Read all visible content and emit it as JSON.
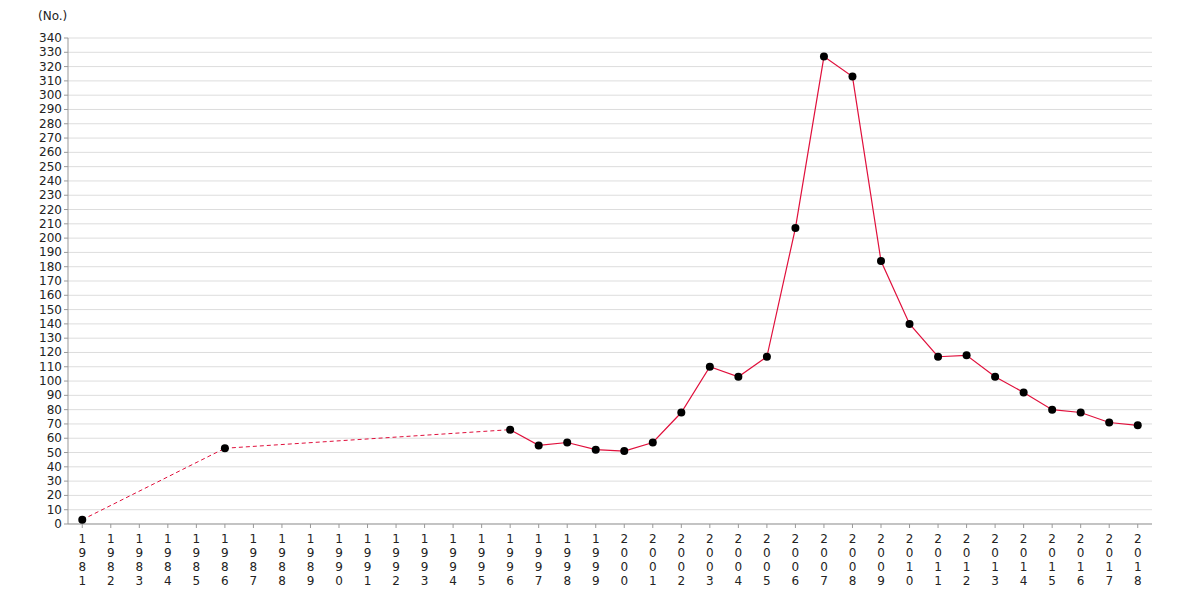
{
  "chart_data": {
    "type": "line",
    "y_label": "(No.)",
    "categories": [
      "1981",
      "1982",
      "1983",
      "1984",
      "1985",
      "1986",
      "1987",
      "1988",
      "1989",
      "1990",
      "1991",
      "1992",
      "1993",
      "1994",
      "1995",
      "1996",
      "1997",
      "1998",
      "1999",
      "2000",
      "2001",
      "2002",
      "2003",
      "2004",
      "2005",
      "2006",
      "2007",
      "2008",
      "2009",
      "2010",
      "2011",
      "2012",
      "2013",
      "2014",
      "2015",
      "2016",
      "2017",
      "2018"
    ],
    "values": [
      3,
      null,
      null,
      null,
      null,
      53,
      null,
      null,
      null,
      null,
      null,
      null,
      null,
      null,
      null,
      66,
      55,
      57,
      52,
      51,
      57,
      78,
      110,
      103,
      117,
      207,
      327,
      313,
      184,
      140,
      117,
      118,
      103,
      92,
      80,
      78,
      71,
      69
    ],
    "color": "#e0103c",
    "marker": "circle",
    "ylim": [
      0,
      340
    ],
    "yticks": [
      0,
      10,
      20,
      30,
      40,
      50,
      60,
      70,
      80,
      90,
      100,
      110,
      120,
      130,
      140,
      150,
      160,
      170,
      180,
      190,
      200,
      210,
      220,
      230,
      240,
      250,
      260,
      270,
      280,
      290,
      300,
      310,
      320,
      330,
      340
    ],
    "grid": true
  }
}
